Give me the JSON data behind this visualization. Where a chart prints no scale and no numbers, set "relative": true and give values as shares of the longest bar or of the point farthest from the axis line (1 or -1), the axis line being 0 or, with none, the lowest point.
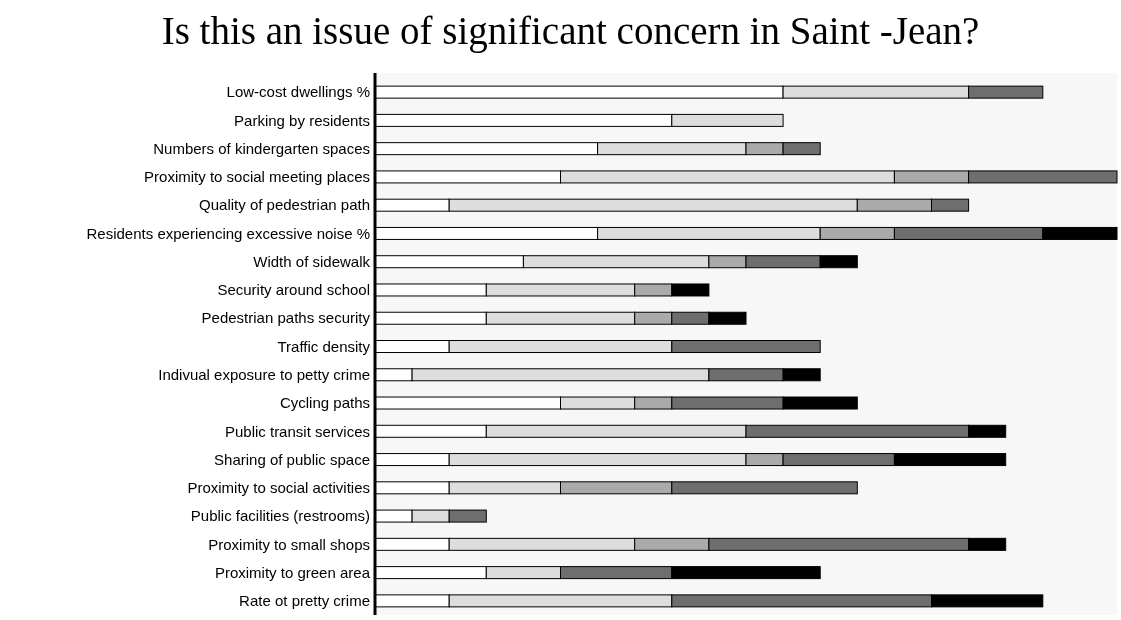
{
  "chart_data": {
    "type": "bar",
    "orientation": "horizontal",
    "stacked": true,
    "relative": true,
    "title": "Is this an issue of significant concern in Saint -Jean?",
    "categories": [
      "Low-cost dwellings %",
      "Parking by residents",
      "Numbers of kindergarten spaces",
      "Proximity to social meeting places",
      "Quality of pedestrian path",
      "Residents experiencing excessive noise %",
      "Width of sidewalk",
      "Security around school",
      "Pedestrian paths security",
      "Traffic density",
      "Indivual exposure to petty crime",
      "Cycling paths",
      "Public transit services",
      "Sharing of public space",
      "Proximity to social activities",
      "Public facilities (restrooms)",
      "Proximity to small shops",
      "Proximity to green area",
      "Rate ot pretty crime"
    ],
    "series": [
      {
        "color": "#ffffff",
        "values": [
          0.55,
          0.4,
          0.3,
          0.25,
          0.1,
          0.3,
          0.2,
          0.15,
          0.15,
          0.1,
          0.05,
          0.25,
          0.15,
          0.1,
          0.1,
          0.05,
          0.1,
          0.15,
          0.1
        ]
      },
      {
        "color": "#dddddd",
        "values": [
          0.25,
          0.15,
          0.2,
          0.45,
          0.55,
          0.3,
          0.25,
          0.2,
          0.2,
          0.3,
          0.4,
          0.1,
          0.35,
          0.4,
          0.15,
          0.05,
          0.25,
          0.1,
          0.3
        ]
      },
      {
        "color": "#aaaaaa",
        "values": [
          0,
          0,
          0.05,
          0.1,
          0.1,
          0.1,
          0.05,
          0.05,
          0.05,
          0,
          0,
          0.05,
          0,
          0.05,
          0.15,
          0,
          0.1,
          0,
          0
        ]
      },
      {
        "color": "#6e6e6e",
        "values": [
          0.1,
          0,
          0.05,
          0.2,
          0.05,
          0.2,
          0.1,
          0,
          0.05,
          0.2,
          0.1,
          0.15,
          0.3,
          0.15,
          0.25,
          0.05,
          0.35,
          0.15,
          0.35
        ]
      },
      {
        "color": "#000000",
        "values": [
          0,
          0,
          0,
          0,
          0,
          0.1,
          0.05,
          0.05,
          0.05,
          0,
          0.05,
          0.1,
          0.05,
          0.15,
          0,
          0,
          0.05,
          0.2,
          0.15
        ]
      }
    ]
  }
}
